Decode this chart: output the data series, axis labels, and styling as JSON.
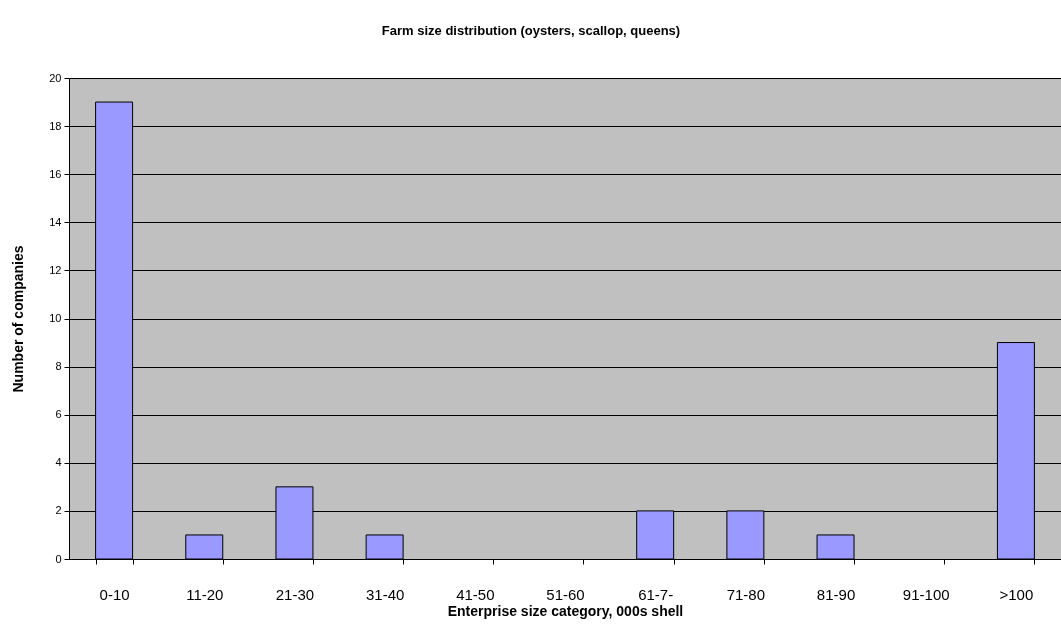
{
  "chart_data": {
    "type": "bar",
    "title": "Farm size distribution (oysters, scallop, queens)",
    "xlabel": "Enterprise size category, 000s shell",
    "ylabel": "Number of companies",
    "categories": [
      "0-10",
      "11-20",
      "21-30",
      "31-40",
      "41-50",
      "51-60",
      "61-7-",
      "71-80",
      "81-90",
      "91-100",
      ">100"
    ],
    "values": [
      19,
      1,
      3,
      1,
      0,
      0,
      2,
      2,
      1,
      0,
      9
    ],
    "color": "#9999ff",
    "ylim": [
      0,
      20
    ],
    "yticks": [
      0,
      2,
      4,
      6,
      8,
      10,
      12,
      14,
      16,
      18,
      20
    ],
    "grid": "y"
  }
}
